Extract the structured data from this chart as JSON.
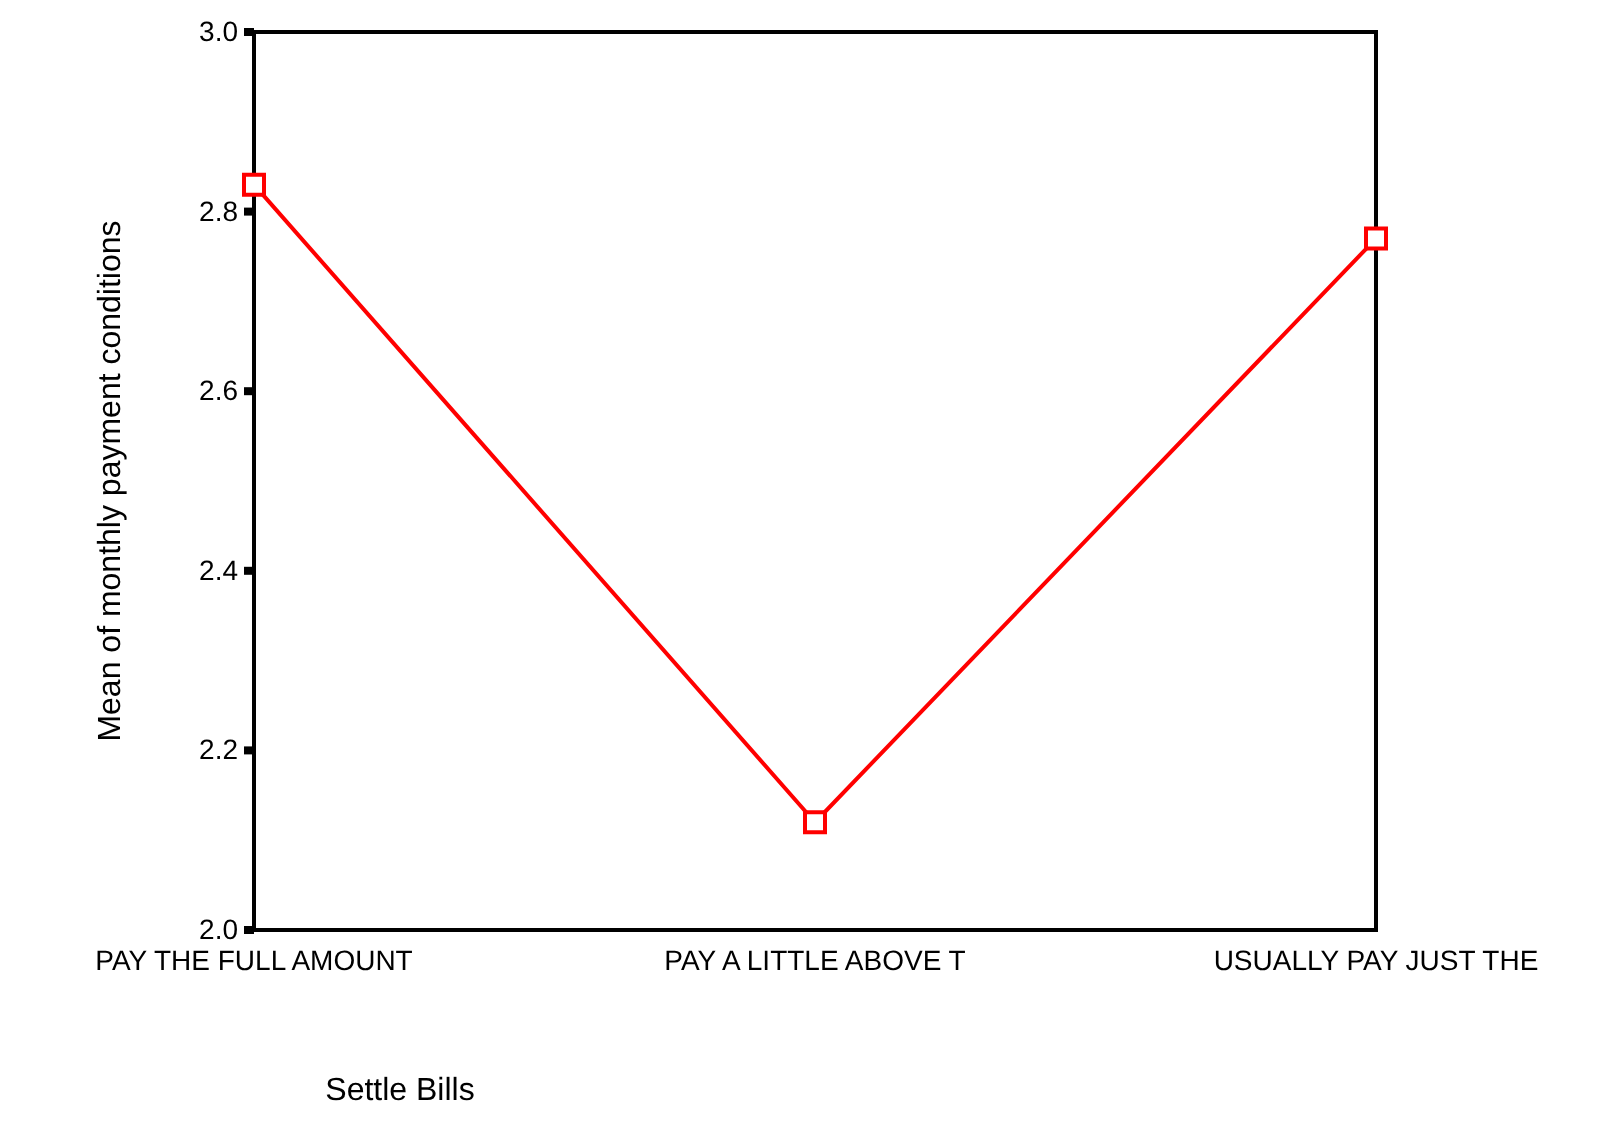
{
  "chart_data": {
    "type": "line",
    "xlabel": "Settle Bills",
    "ylabel": "Mean of  monthly  payment conditions",
    "categories": [
      "PAY THE FULL AMOUNT",
      "PAY A LITTLE ABOVE T",
      "USUALLY PAY JUST THE"
    ],
    "series": [
      {
        "color": "#ff0000",
        "values": [
          2.83,
          2.12,
          2.77
        ]
      }
    ],
    "ylim": [
      2.0,
      3.0
    ],
    "yticks": [
      {
        "value": 2.0,
        "label": "2.0"
      },
      {
        "value": 2.2,
        "label": "2.2"
      },
      {
        "value": 2.4,
        "label": "2.4"
      },
      {
        "value": 2.6,
        "label": "2.6"
      },
      {
        "value": 2.8,
        "label": "2.8"
      },
      {
        "value": 3.0,
        "label": "3.0"
      }
    ],
    "marker": "square",
    "line_style": "solid",
    "grid": false
  }
}
